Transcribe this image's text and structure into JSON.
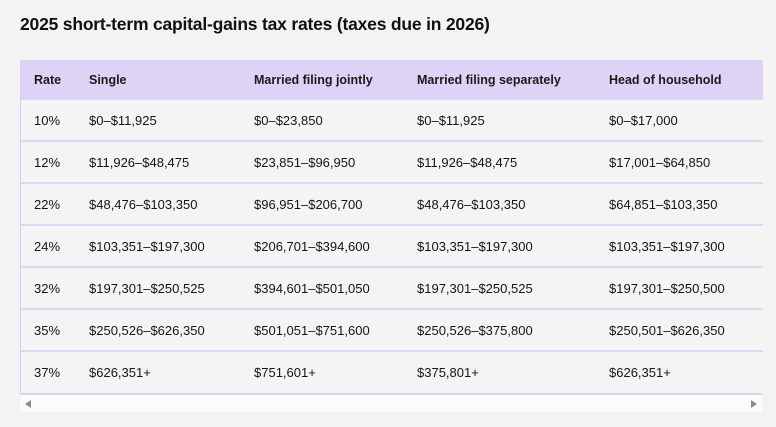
{
  "title": "2025 short-term capital-gains tax rates (taxes due in 2026)",
  "chart_data": {
    "type": "table",
    "title": "2025 short-term capital-gains tax rates (taxes due in 2026)",
    "columns": [
      "Rate",
      "Single",
      "Married filing jointly",
      "Married filing separately",
      "Head of household"
    ],
    "rows": [
      [
        "10%",
        "$0–$11,925",
        "$0–$23,850",
        "$0–$11,925",
        "$0–$17,000"
      ],
      [
        "12%",
        "$11,926–$48,475",
        "$23,851–$96,950",
        "$11,926–$48,475",
        "$17,001–$64,850"
      ],
      [
        "22%",
        "$48,476–$103,350",
        "$96,951–$206,700",
        "$48,476–$103,350",
        "$64,851–$103,350"
      ],
      [
        "24%",
        "$103,351–$197,300",
        "$206,701–$394,600",
        "$103,351–$197,300",
        "$103,351–$197,300"
      ],
      [
        "32%",
        "$197,301–$250,525",
        "$394,601–$501,050",
        "$197,301–$250,525",
        "$197,301–$250,500"
      ],
      [
        "35%",
        "$250,526–$626,350",
        "$501,051–$751,600",
        "$250,526–$375,800",
        "$250,501–$626,350"
      ],
      [
        "37%",
        "$626,351+",
        "$751,601+",
        "$375,801+",
        "$626,351+"
      ]
    ]
  },
  "colors": {
    "page_bg": "#f3f3f3",
    "header_bg": "#ddd3f6",
    "row_bg": "#f4f4f5",
    "divider": "#ded6f3",
    "border": "#d9d2ef",
    "text": "#141414",
    "track_bg": "#fbfbfb",
    "arrow": "#8a8a8a"
  }
}
